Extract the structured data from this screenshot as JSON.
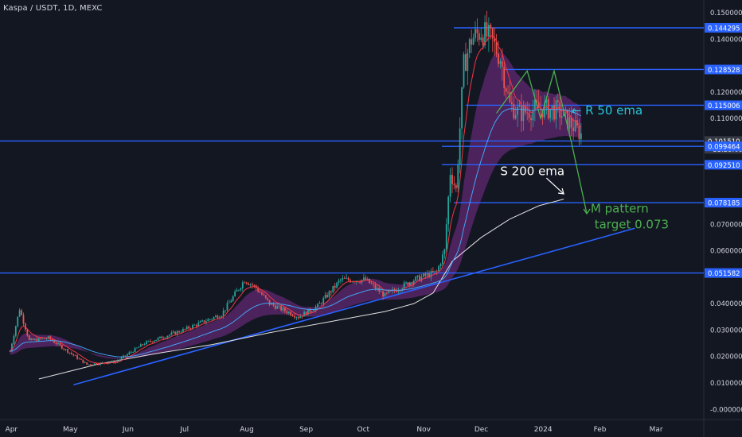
{
  "header": {
    "symbol_label": "Kaspa / USDT, 1D, MEXC"
  },
  "colors": {
    "background": "#131722",
    "axis_text": "#d1d4dc",
    "candle_up": "#26a69a",
    "candle_down": "#ef5350",
    "level_line": "#2962ff",
    "ema_fast": "#f23645",
    "ema_mid": "#42a5f5",
    "ribbon": "#7b2d8e",
    "ema_200": "#e0e0e0",
    "trendline": "#2962ff",
    "annotation_r": "#26c6da",
    "annotation_m": "#4caf50",
    "annotation_s": "#ffffff"
  },
  "chart_data": {
    "type": "candlestick",
    "x_unit": "days since 2023-03-27",
    "x_ticks": [
      {
        "label": "Apr",
        "x": 5
      },
      {
        "label": "May",
        "x": 35
      },
      {
        "label": "Jun",
        "x": 66
      },
      {
        "label": "Jul",
        "x": 96
      },
      {
        "label": "Aug",
        "x": 127
      },
      {
        "label": "Sep",
        "x": 158
      },
      {
        "label": "Oct",
        "x": 188
      },
      {
        "label": "Nov",
        "x": 219
      },
      {
        "label": "Dec",
        "x": 249
      },
      {
        "label": "2024",
        "x": 280
      },
      {
        "label": "Feb",
        "x": 311
      },
      {
        "label": "Mar",
        "x": 340
      }
    ],
    "y_ticks": [
      {
        "label": "0.150000",
        "y": 0.15
      },
      {
        "label": "0.140000",
        "y": 0.14
      },
      {
        "label": "0.120000",
        "y": 0.12
      },
      {
        "label": "0.110000",
        "y": 0.11
      },
      {
        "label": "0.070000",
        "y": 0.07
      },
      {
        "label": "0.060000",
        "y": 0.06
      },
      {
        "label": "0.040000",
        "y": 0.04
      },
      {
        "label": "0.030000",
        "y": 0.03
      },
      {
        "label": "0.020000",
        "y": 0.02
      },
      {
        "label": "0.010000",
        "y": 0.01
      },
      {
        "label": "-0.000000",
        "y": 0.0
      }
    ],
    "ylim": [
      -0.001,
      0.153
    ],
    "horizontal_levels": [
      {
        "label": "0.144295",
        "y": 0.144295
      },
      {
        "label": "0.128528",
        "y": 0.128528
      },
      {
        "label": "0.115006",
        "y": 0.115006
      },
      {
        "label": "0.101510",
        "y": 0.10151
      },
      {
        "label": "0.099464",
        "y": 0.099464
      },
      {
        "label": "0.092510",
        "y": 0.09251
      },
      {
        "label": "0.078185",
        "y": 0.078185
      },
      {
        "label": "0.051582",
        "y": 0.051582
      }
    ],
    "last_price": {
      "value": "0.101510",
      "countdown": "11:23:09"
    },
    "ema_200_points": [
      [
        20,
        0.0115
      ],
      [
        50,
        0.017
      ],
      [
        80,
        0.021
      ],
      [
        110,
        0.0245
      ],
      [
        140,
        0.029
      ],
      [
        170,
        0.033
      ],
      [
        200,
        0.037
      ],
      [
        215,
        0.04
      ],
      [
        225,
        0.044
      ],
      [
        235,
        0.056
      ],
      [
        250,
        0.065
      ],
      [
        265,
        0.072
      ],
      [
        280,
        0.077
      ],
      [
        293,
        0.0795
      ]
    ],
    "trendline": {
      "from": [
        38,
        0.0093
      ],
      "to": [
        330,
        0.0685
      ]
    },
    "annotations": [
      {
        "text": "← R 50 ema",
        "x": 297,
        "y": 0.1115,
        "color_key": "annotation_r"
      },
      {
        "text": "S 200 ema",
        "x": 260,
        "y": 0.0885,
        "color_key": "annotation_s"
      },
      {
        "text": "M pattern",
        "x": 307,
        "y": 0.0745,
        "color_key": "annotation_m"
      },
      {
        "text": "target 0.073",
        "x": 309,
        "y": 0.0685,
        "color_key": "annotation_m"
      }
    ],
    "m_pattern_path": [
      [
        258,
        0.112
      ],
      [
        274,
        0.128
      ],
      [
        281,
        0.11
      ],
      [
        288,
        0.128
      ],
      [
        297,
        0.101
      ],
      [
        305,
        0.074
      ]
    ],
    "s200_arrow": {
      "from": [
        284,
        0.0875
      ],
      "to": [
        293,
        0.0815
      ]
    }
  }
}
